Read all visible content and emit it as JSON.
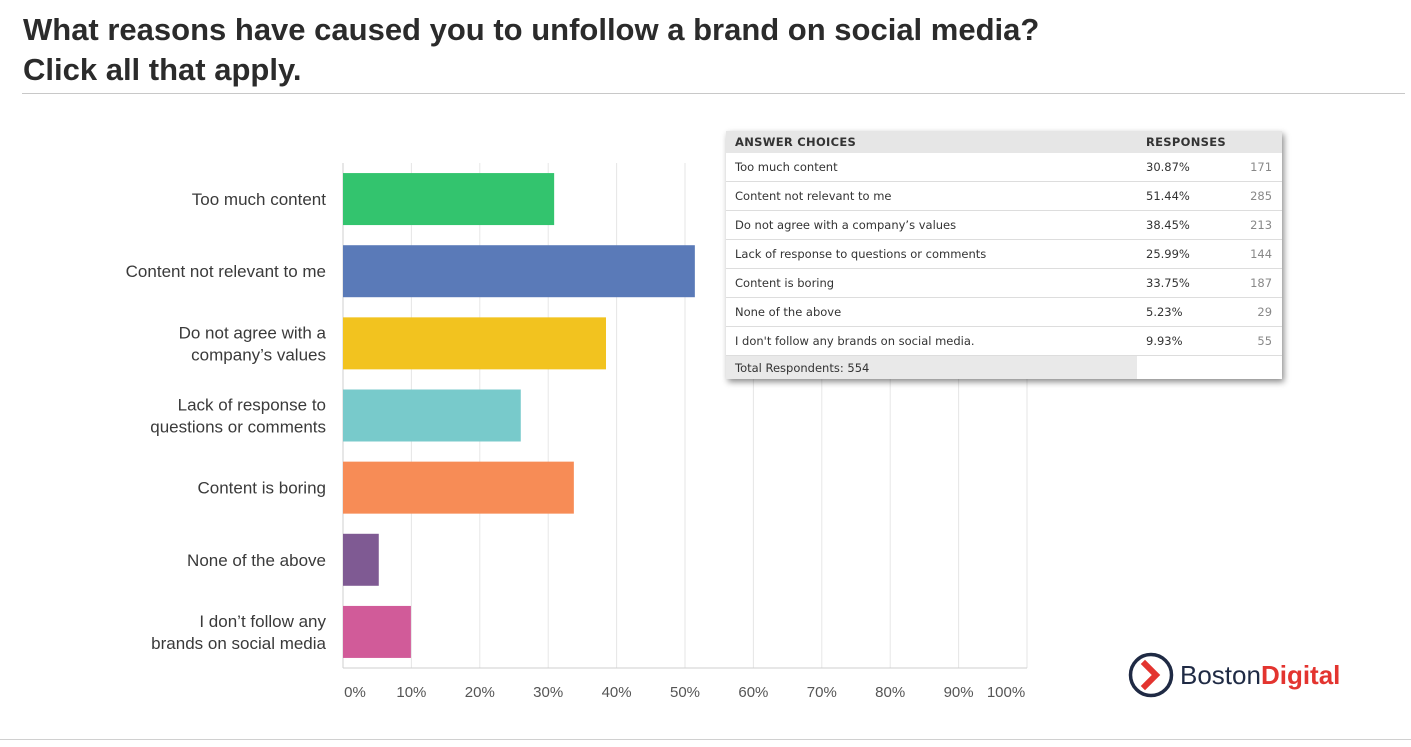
{
  "title_line1": "What reasons have caused you to unfollow a brand on social media?",
  "title_line2": "Click all that apply.",
  "chart_data": {
    "type": "bar",
    "orientation": "horizontal",
    "categories": [
      "Too much content",
      "Content not relevant to me",
      "Do not agree with a company's values",
      "Lack of response to questions or comments",
      "Content is boring",
      "None of the above",
      "I don't follow any brands on social media"
    ],
    "category_label_lines": [
      [
        "Too much content"
      ],
      [
        "Content not relevant to me"
      ],
      [
        "Do not agree with a",
        "company’s values"
      ],
      [
        "Lack of response to",
        "questions or comments"
      ],
      [
        "Content is boring"
      ],
      [
        "None of the above"
      ],
      [
        "I don’t follow any",
        "brands on social media"
      ]
    ],
    "values": [
      30.87,
      51.44,
      38.45,
      25.99,
      33.75,
      5.23,
      9.93
    ],
    "colors": [
      "#33c46e",
      "#5a7ab8",
      "#f2c31f",
      "#78cacb",
      "#f78c56",
      "#7f5a93",
      "#d15b99"
    ],
    "xlim": [
      0,
      100
    ],
    "xticks": [
      "0%",
      "10%",
      "20%",
      "30%",
      "40%",
      "50%",
      "60%",
      "70%",
      "80%",
      "90%",
      "100%"
    ],
    "grid": true,
    "xlabel": "",
    "ylabel": ""
  },
  "table": {
    "headers": [
      "ANSWER CHOICES",
      "RESPONSES"
    ],
    "rows": [
      {
        "choice": "Too much content",
        "percent": "30.87%",
        "count": "171"
      },
      {
        "choice": "Content not relevant to me",
        "percent": "51.44%",
        "count": "285"
      },
      {
        "choice": "Do not agree with a company’s values",
        "percent": "38.45%",
        "count": "213"
      },
      {
        "choice": "Lack of response to questions or comments",
        "percent": "25.99%",
        "count": "144"
      },
      {
        "choice": "Content is boring",
        "percent": "33.75%",
        "count": "187"
      },
      {
        "choice": "None of the above",
        "percent": "5.23%",
        "count": "29"
      },
      {
        "choice": "I don't follow any brands on social media.",
        "percent": "9.93%",
        "count": "55"
      }
    ],
    "total": "Total Respondents: 554"
  },
  "logo": {
    "word1": "Boston",
    "word2": "Digital",
    "icon": "chevron-right-circle-icon",
    "colors": {
      "dark": "#1f2a44",
      "accent": "#e3342f"
    }
  }
}
